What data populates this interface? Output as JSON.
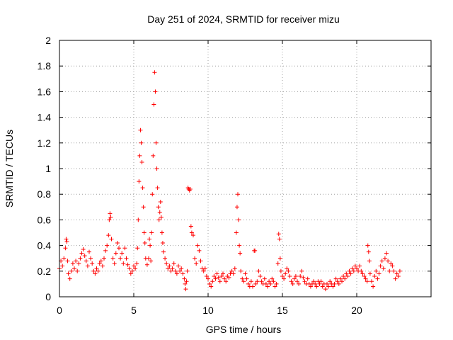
{
  "chart_data": {
    "type": "scatter",
    "title": "Day 251 of 2024, SRMTID for receiver mizu",
    "xlabel": "GPS time / hours",
    "ylabel": "SRMTID / TECUs",
    "xlim": [
      0,
      25
    ],
    "ylim": [
      0,
      2
    ],
    "x_ticks": [
      0,
      5,
      10,
      15,
      20
    ],
    "x_tick_labels": [
      "0",
      "5",
      "10",
      "15",
      "20"
    ],
    "y_ticks": [
      0,
      0.2,
      0.4,
      0.6,
      0.8,
      1,
      1.2,
      1.4,
      1.6,
      1.8,
      2
    ],
    "y_tick_labels": [
      "0",
      "0.2",
      "0.4",
      "0.6",
      "0.8",
      "1",
      "1.2",
      "1.4",
      "1.6",
      "1.8",
      "2"
    ],
    "grid": true,
    "marker": "plus",
    "marker_color": "#ff0000",
    "series": [
      {
        "name": "SRMTID",
        "points": [
          [
            0.0,
            0.22
          ],
          [
            0.1,
            0.28
          ],
          [
            0.2,
            0.24
          ],
          [
            0.3,
            0.3
          ],
          [
            0.4,
            0.38
          ],
          [
            0.45,
            0.45
          ],
          [
            0.5,
            0.43
          ],
          [
            0.55,
            0.28
          ],
          [
            0.6,
            0.18
          ],
          [
            0.7,
            0.14
          ],
          [
            0.8,
            0.2
          ],
          [
            0.9,
            0.26
          ],
          [
            1.0,
            0.22
          ],
          [
            1.1,
            0.28
          ],
          [
            1.2,
            0.2
          ],
          [
            1.3,
            0.26
          ],
          [
            1.4,
            0.3
          ],
          [
            1.5,
            0.34
          ],
          [
            1.6,
            0.37
          ],
          [
            1.7,
            0.32
          ],
          [
            1.8,
            0.28
          ],
          [
            1.9,
            0.24
          ],
          [
            2.0,
            0.35
          ],
          [
            2.1,
            0.3
          ],
          [
            2.2,
            0.26
          ],
          [
            2.3,
            0.2
          ],
          [
            2.4,
            0.18
          ],
          [
            2.5,
            0.22
          ],
          [
            2.6,
            0.2
          ],
          [
            2.7,
            0.26
          ],
          [
            2.8,
            0.28
          ],
          [
            2.9,
            0.24
          ],
          [
            3.0,
            0.3
          ],
          [
            3.1,
            0.36
          ],
          [
            3.2,
            0.4
          ],
          [
            3.3,
            0.48
          ],
          [
            3.35,
            0.6
          ],
          [
            3.4,
            0.65
          ],
          [
            3.45,
            0.62
          ],
          [
            3.5,
            0.45
          ],
          [
            3.6,
            0.3
          ],
          [
            3.7,
            0.26
          ],
          [
            3.8,
            0.34
          ],
          [
            3.9,
            0.42
          ],
          [
            4.0,
            0.38
          ],
          [
            4.1,
            0.3
          ],
          [
            4.2,
            0.34
          ],
          [
            4.3,
            0.26
          ],
          [
            4.4,
            0.38
          ],
          [
            4.5,
            0.3
          ],
          [
            4.6,
            0.25
          ],
          [
            4.7,
            0.22
          ],
          [
            4.8,
            0.18
          ],
          [
            4.9,
            0.2
          ],
          [
            5.0,
            0.24
          ],
          [
            5.1,
            0.22
          ],
          [
            5.2,
            0.26
          ],
          [
            5.25,
            0.38
          ],
          [
            5.3,
            0.6
          ],
          [
            5.35,
            0.9
          ],
          [
            5.4,
            1.1
          ],
          [
            5.45,
            1.3
          ],
          [
            5.5,
            1.2
          ],
          [
            5.55,
            1.05
          ],
          [
            5.6,
            0.85
          ],
          [
            5.65,
            0.7
          ],
          [
            5.7,
            0.5
          ],
          [
            5.75,
            0.42
          ],
          [
            5.8,
            0.3
          ],
          [
            5.9,
            0.25
          ],
          [
            6.0,
            0.3
          ],
          [
            6.05,
            0.45
          ],
          [
            6.1,
            0.4
          ],
          [
            6.15,
            0.28
          ],
          [
            6.2,
            0.5
          ],
          [
            6.25,
            0.8
          ],
          [
            6.3,
            1.1
          ],
          [
            6.35,
            1.5
          ],
          [
            6.4,
            1.75
          ],
          [
            6.45,
            1.6
          ],
          [
            6.5,
            1.2
          ],
          [
            6.55,
            1.0
          ],
          [
            6.6,
            0.85
          ],
          [
            6.65,
            0.7
          ],
          [
            6.7,
            0.6
          ],
          [
            6.75,
            0.66
          ],
          [
            6.8,
            0.74
          ],
          [
            6.85,
            0.62
          ],
          [
            6.9,
            0.5
          ],
          [
            6.95,
            0.42
          ],
          [
            7.0,
            0.35
          ],
          [
            7.1,
            0.3
          ],
          [
            7.2,
            0.26
          ],
          [
            7.3,
            0.22
          ],
          [
            7.4,
            0.24
          ],
          [
            7.5,
            0.2
          ],
          [
            7.6,
            0.22
          ],
          [
            7.7,
            0.26
          ],
          [
            7.8,
            0.2
          ],
          [
            7.9,
            0.18
          ],
          [
            8.0,
            0.24
          ],
          [
            8.1,
            0.2
          ],
          [
            8.2,
            0.22
          ],
          [
            8.3,
            0.18
          ],
          [
            8.4,
            0.14
          ],
          [
            8.45,
            0.1
          ],
          [
            8.5,
            0.06
          ],
          [
            8.55,
            0.12
          ],
          [
            8.6,
            0.2
          ],
          [
            8.65,
            0.85
          ],
          [
            8.7,
            0.84
          ],
          [
            8.75,
            0.83
          ],
          [
            8.8,
            0.84
          ],
          [
            8.85,
            0.55
          ],
          [
            8.9,
            0.5
          ],
          [
            9.0,
            0.48
          ],
          [
            9.1,
            0.3
          ],
          [
            9.2,
            0.26
          ],
          [
            9.3,
            0.4
          ],
          [
            9.4,
            0.36
          ],
          [
            9.5,
            0.28
          ],
          [
            9.6,
            0.22
          ],
          [
            9.7,
            0.2
          ],
          [
            9.8,
            0.22
          ],
          [
            9.9,
            0.16
          ],
          [
            10.0,
            0.14
          ],
          [
            10.1,
            0.1
          ],
          [
            10.2,
            0.08
          ],
          [
            10.3,
            0.12
          ],
          [
            10.4,
            0.16
          ],
          [
            10.5,
            0.14
          ],
          [
            10.6,
            0.18
          ],
          [
            10.7,
            0.15
          ],
          [
            10.8,
            0.12
          ],
          [
            10.9,
            0.16
          ],
          [
            11.0,
            0.18
          ],
          [
            11.1,
            0.14
          ],
          [
            11.2,
            0.12
          ],
          [
            11.3,
            0.16
          ],
          [
            11.4,
            0.15
          ],
          [
            11.5,
            0.18
          ],
          [
            11.6,
            0.2
          ],
          [
            11.7,
            0.18
          ],
          [
            11.8,
            0.22
          ],
          [
            11.9,
            0.5
          ],
          [
            11.95,
            0.7
          ],
          [
            12.0,
            0.8
          ],
          [
            12.05,
            0.6
          ],
          [
            12.1,
            0.4
          ],
          [
            12.15,
            0.34
          ],
          [
            12.2,
            0.2
          ],
          [
            12.3,
            0.14
          ],
          [
            12.4,
            0.12
          ],
          [
            12.5,
            0.18
          ],
          [
            12.6,
            0.14
          ],
          [
            12.7,
            0.1
          ],
          [
            12.8,
            0.08
          ],
          [
            12.9,
            0.12
          ],
          [
            13.0,
            0.08
          ],
          [
            13.1,
            0.36
          ],
          [
            13.15,
            0.36
          ],
          [
            13.2,
            0.1
          ],
          [
            13.3,
            0.12
          ],
          [
            13.4,
            0.2
          ],
          [
            13.5,
            0.16
          ],
          [
            13.6,
            0.12
          ],
          [
            13.7,
            0.1
          ],
          [
            13.8,
            0.14
          ],
          [
            13.9,
            0.1
          ],
          [
            14.0,
            0.08
          ],
          [
            14.1,
            0.12
          ],
          [
            14.2,
            0.1
          ],
          [
            14.3,
            0.14
          ],
          [
            14.4,
            0.12
          ],
          [
            14.5,
            0.08
          ],
          [
            14.6,
            0.1
          ],
          [
            14.7,
            0.26
          ],
          [
            14.75,
            0.49
          ],
          [
            14.8,
            0.45
          ],
          [
            14.85,
            0.3
          ],
          [
            14.9,
            0.2
          ],
          [
            15.0,
            0.16
          ],
          [
            15.1,
            0.14
          ],
          [
            15.2,
            0.18
          ],
          [
            15.3,
            0.22
          ],
          [
            15.4,
            0.2
          ],
          [
            15.5,
            0.16
          ],
          [
            15.6,
            0.12
          ],
          [
            15.7,
            0.1
          ],
          [
            15.8,
            0.14
          ],
          [
            15.9,
            0.16
          ],
          [
            16.0,
            0.12
          ],
          [
            16.1,
            0.1
          ],
          [
            16.2,
            0.16
          ],
          [
            16.3,
            0.2
          ],
          [
            16.4,
            0.15
          ],
          [
            16.5,
            0.12
          ],
          [
            16.6,
            0.1
          ],
          [
            16.7,
            0.14
          ],
          [
            16.8,
            0.1
          ],
          [
            16.9,
            0.08
          ],
          [
            17.0,
            0.1
          ],
          [
            17.1,
            0.12
          ],
          [
            17.2,
            0.1
          ],
          [
            17.3,
            0.08
          ],
          [
            17.4,
            0.12
          ],
          [
            17.5,
            0.1
          ],
          [
            17.6,
            0.12
          ],
          [
            17.7,
            0.08
          ],
          [
            17.8,
            0.1
          ],
          [
            17.9,
            0.06
          ],
          [
            18.0,
            0.1
          ],
          [
            18.1,
            0.08
          ],
          [
            18.2,
            0.12
          ],
          [
            18.3,
            0.1
          ],
          [
            18.4,
            0.08
          ],
          [
            18.5,
            0.1
          ],
          [
            18.6,
            0.14
          ],
          [
            18.7,
            0.12
          ],
          [
            18.8,
            0.1
          ],
          [
            18.9,
            0.14
          ],
          [
            19.0,
            0.12
          ],
          [
            19.1,
            0.16
          ],
          [
            19.2,
            0.14
          ],
          [
            19.3,
            0.18
          ],
          [
            19.4,
            0.16
          ],
          [
            19.5,
            0.2
          ],
          [
            19.6,
            0.18
          ],
          [
            19.7,
            0.22
          ],
          [
            19.8,
            0.2
          ],
          [
            19.9,
            0.24
          ],
          [
            20.0,
            0.22
          ],
          [
            20.1,
            0.2
          ],
          [
            20.2,
            0.24
          ],
          [
            20.3,
            0.2
          ],
          [
            20.4,
            0.18
          ],
          [
            20.5,
            0.16
          ],
          [
            20.6,
            0.14
          ],
          [
            20.7,
            0.12
          ],
          [
            20.75,
            0.4
          ],
          [
            20.8,
            0.35
          ],
          [
            20.85,
            0.28
          ],
          [
            20.9,
            0.18
          ],
          [
            21.0,
            0.12
          ],
          [
            21.1,
            0.08
          ],
          [
            21.2,
            0.16
          ],
          [
            21.3,
            0.2
          ],
          [
            21.4,
            0.14
          ],
          [
            21.5,
            0.18
          ],
          [
            21.6,
            0.24
          ],
          [
            21.7,
            0.28
          ],
          [
            21.8,
            0.22
          ],
          [
            21.9,
            0.3
          ],
          [
            22.0,
            0.34
          ],
          [
            22.1,
            0.28
          ],
          [
            22.2,
            0.2
          ],
          [
            22.3,
            0.26
          ],
          [
            22.4,
            0.24
          ],
          [
            22.5,
            0.2
          ],
          [
            22.6,
            0.14
          ],
          [
            22.7,
            0.18
          ],
          [
            22.8,
            0.16
          ],
          [
            22.9,
            0.2
          ]
        ]
      }
    ]
  }
}
